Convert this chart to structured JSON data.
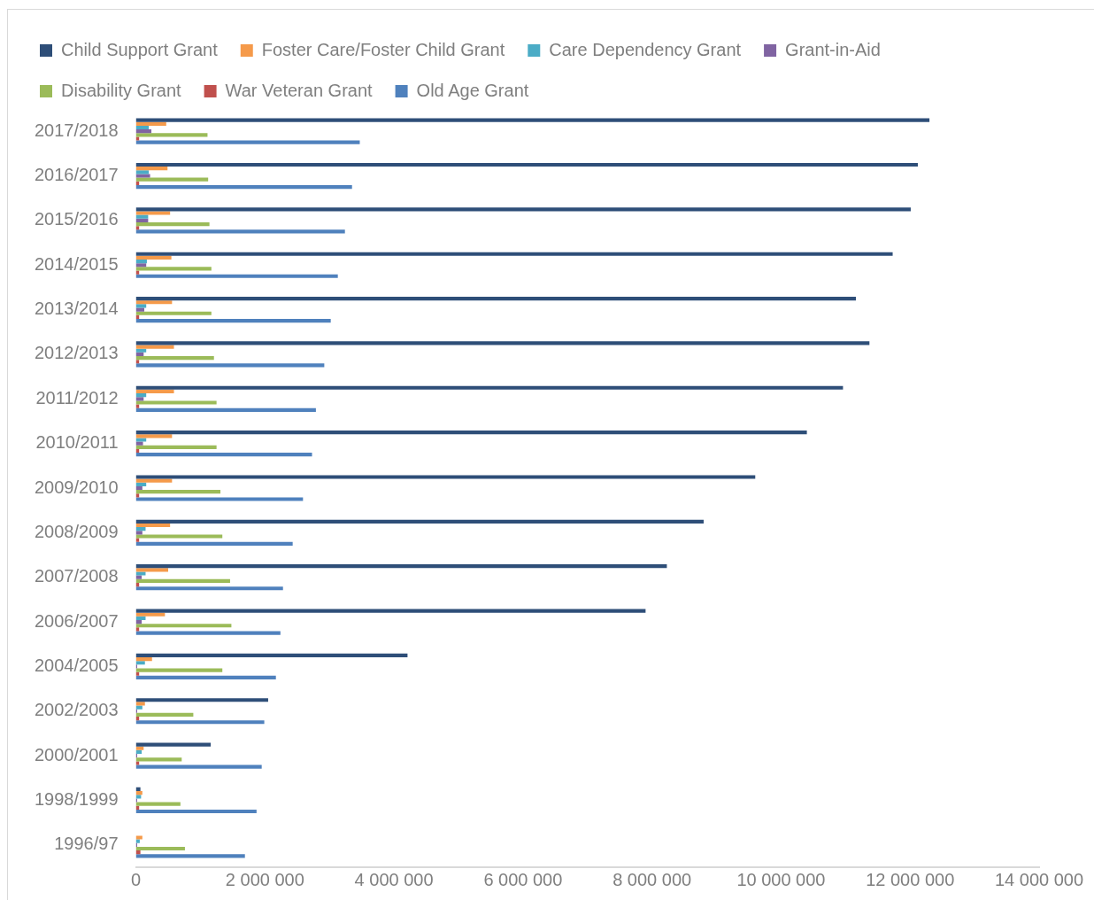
{
  "chart_data": {
    "type": "bar",
    "orientation": "horizontal",
    "legend": "top",
    "grid": false,
    "categories": [
      "2017/2018",
      "2016/2017",
      "2015/2016",
      "2014/2015",
      "2013/2014",
      "2012/2013",
      "2011/2012",
      "2010/2011",
      "2009/2010",
      "2008/2009",
      "2007/2008",
      "2006/2007",
      "2004/2005",
      "2002/2003",
      "2000/2001",
      "1998/1999",
      "1996/97"
    ],
    "xlim": [
      0,
      14000000
    ],
    "xticks": [
      0,
      {
        "value": 2000000,
        "label": "2 000 000"
      },
      {
        "value": 4000000,
        "label": "4 000 000"
      },
      {
        "value": 6000000,
        "label": "6 000 000"
      },
      {
        "value": 8000000,
        "label": "8 000 000"
      },
      {
        "value": 10000000,
        "label": "10 000 000"
      },
      {
        "value": 12000000,
        "label": "12 000 000"
      },
      {
        "value": 14000000,
        "label": "14 000 000"
      }
    ],
    "series": [
      {
        "name": "Child Support Grant",
        "color": "#2e4e78",
        "values": [
          12300000,
          12120000,
          12010000,
          11730000,
          11160000,
          11370000,
          10960000,
          10400000,
          9600000,
          8800000,
          8230000,
          7900000,
          4210000,
          2050000,
          1160000,
          70000,
          0
        ]
      },
      {
        "name": "Foster Care/Foster Child Grant",
        "color": "#f59a4a",
        "values": [
          470000,
          490000,
          530000,
          550000,
          560000,
          590000,
          590000,
          560000,
          560000,
          530000,
          500000,
          450000,
          250000,
          140000,
          120000,
          100000,
          100000
        ]
      },
      {
        "name": "Care Dependency Grant",
        "color": "#4bacc6",
        "values": [
          200000,
          200000,
          190000,
          170000,
          160000,
          160000,
          160000,
          160000,
          160000,
          150000,
          150000,
          150000,
          140000,
          100000,
          90000,
          80000,
          60000
        ]
      },
      {
        "name": "Grant-in-Aid",
        "color": "#8064a2",
        "values": [
          240000,
          220000,
          190000,
          160000,
          130000,
          120000,
          120000,
          110000,
          100000,
          100000,
          90000,
          90000,
          20000,
          20000,
          20000,
          20000,
          20000
        ]
      },
      {
        "name": "Disability Grant",
        "color": "#9bbb59",
        "values": [
          1110000,
          1120000,
          1140000,
          1170000,
          1170000,
          1210000,
          1250000,
          1250000,
          1310000,
          1340000,
          1460000,
          1480000,
          1340000,
          890000,
          710000,
          690000,
          760000
        ]
      },
      {
        "name": "War Veteran Grant",
        "color": "#c0504d",
        "values": [
          50000,
          50000,
          50000,
          50000,
          50000,
          50000,
          50000,
          50000,
          50000,
          50000,
          50000,
          50000,
          50000,
          50000,
          50000,
          50000,
          70000
        ]
      },
      {
        "name": "Old Age Grant",
        "color": "#4f81bd",
        "values": [
          3470000,
          3350000,
          3240000,
          3130000,
          3020000,
          2920000,
          2790000,
          2730000,
          2590000,
          2430000,
          2280000,
          2240000,
          2170000,
          1990000,
          1950000,
          1870000,
          1690000
        ]
      }
    ]
  }
}
